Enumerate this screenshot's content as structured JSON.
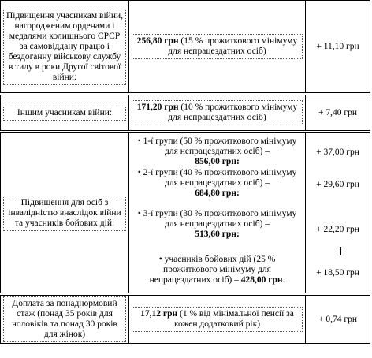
{
  "rows": [
    {
      "category": "Підвищення учасникам війни, нагородженим орденами і медалями колишнього СРСР за самовіддану працю і бездоганну військову службу в тилу в роки Другої світової війни:",
      "amount_value": "256,80 грн",
      "amount_note": " (15 % прожиткового мінімуму для непрацездатних  осіб)",
      "increase": "+ 11,10 грн"
    },
    {
      "category": "Іншим учасникам війни:",
      "amount_value": "171,20 грн",
      "amount_note": " (10 % прожиткового мінімуму для непрацездатних  осіб)",
      "increase": "+ 7,40 грн"
    },
    {
      "category": "Підвищення для осіб з інвалідністю внаслідок війни та учасників бойових дій:",
      "groups": [
        {
          "prefix": "• 1-ї групи (50 % прожиткового мінімуму для непрацездатних  осіб) –",
          "value": "856,00 грн",
          "increase": "+ 37,00 грн"
        },
        {
          "prefix": "• 2-ї групи (40 % прожиткового мінімуму для непрацездатних  осіб) –",
          "value": "684,80 грн",
          "increase": "+ 29,60 грн"
        },
        {
          "prefix": "• 3-ї групи (30 % прожиткового мінімуму для непрацездатних  осіб) –",
          "value": "513,60 грн",
          "increase": "+ 22,20 грн"
        },
        {
          "prefix": "• учасників  бойових дій (25 % прожиткового мінімуму для непрацездатних  осіб) –",
          "value": "428,00 грн",
          "increase": "+ 18,50 грн"
        }
      ]
    },
    {
      "category": "Доплата за понаднормовий стаж (понад 35 років для чоловіків та понад  30 років для жінок)",
      "amount_value": "17,12 грн",
      "amount_note": " (1 % від мінімальної пенсії  за кожен додатковий рік)",
      "increase": "+ 0,74 грн"
    }
  ]
}
